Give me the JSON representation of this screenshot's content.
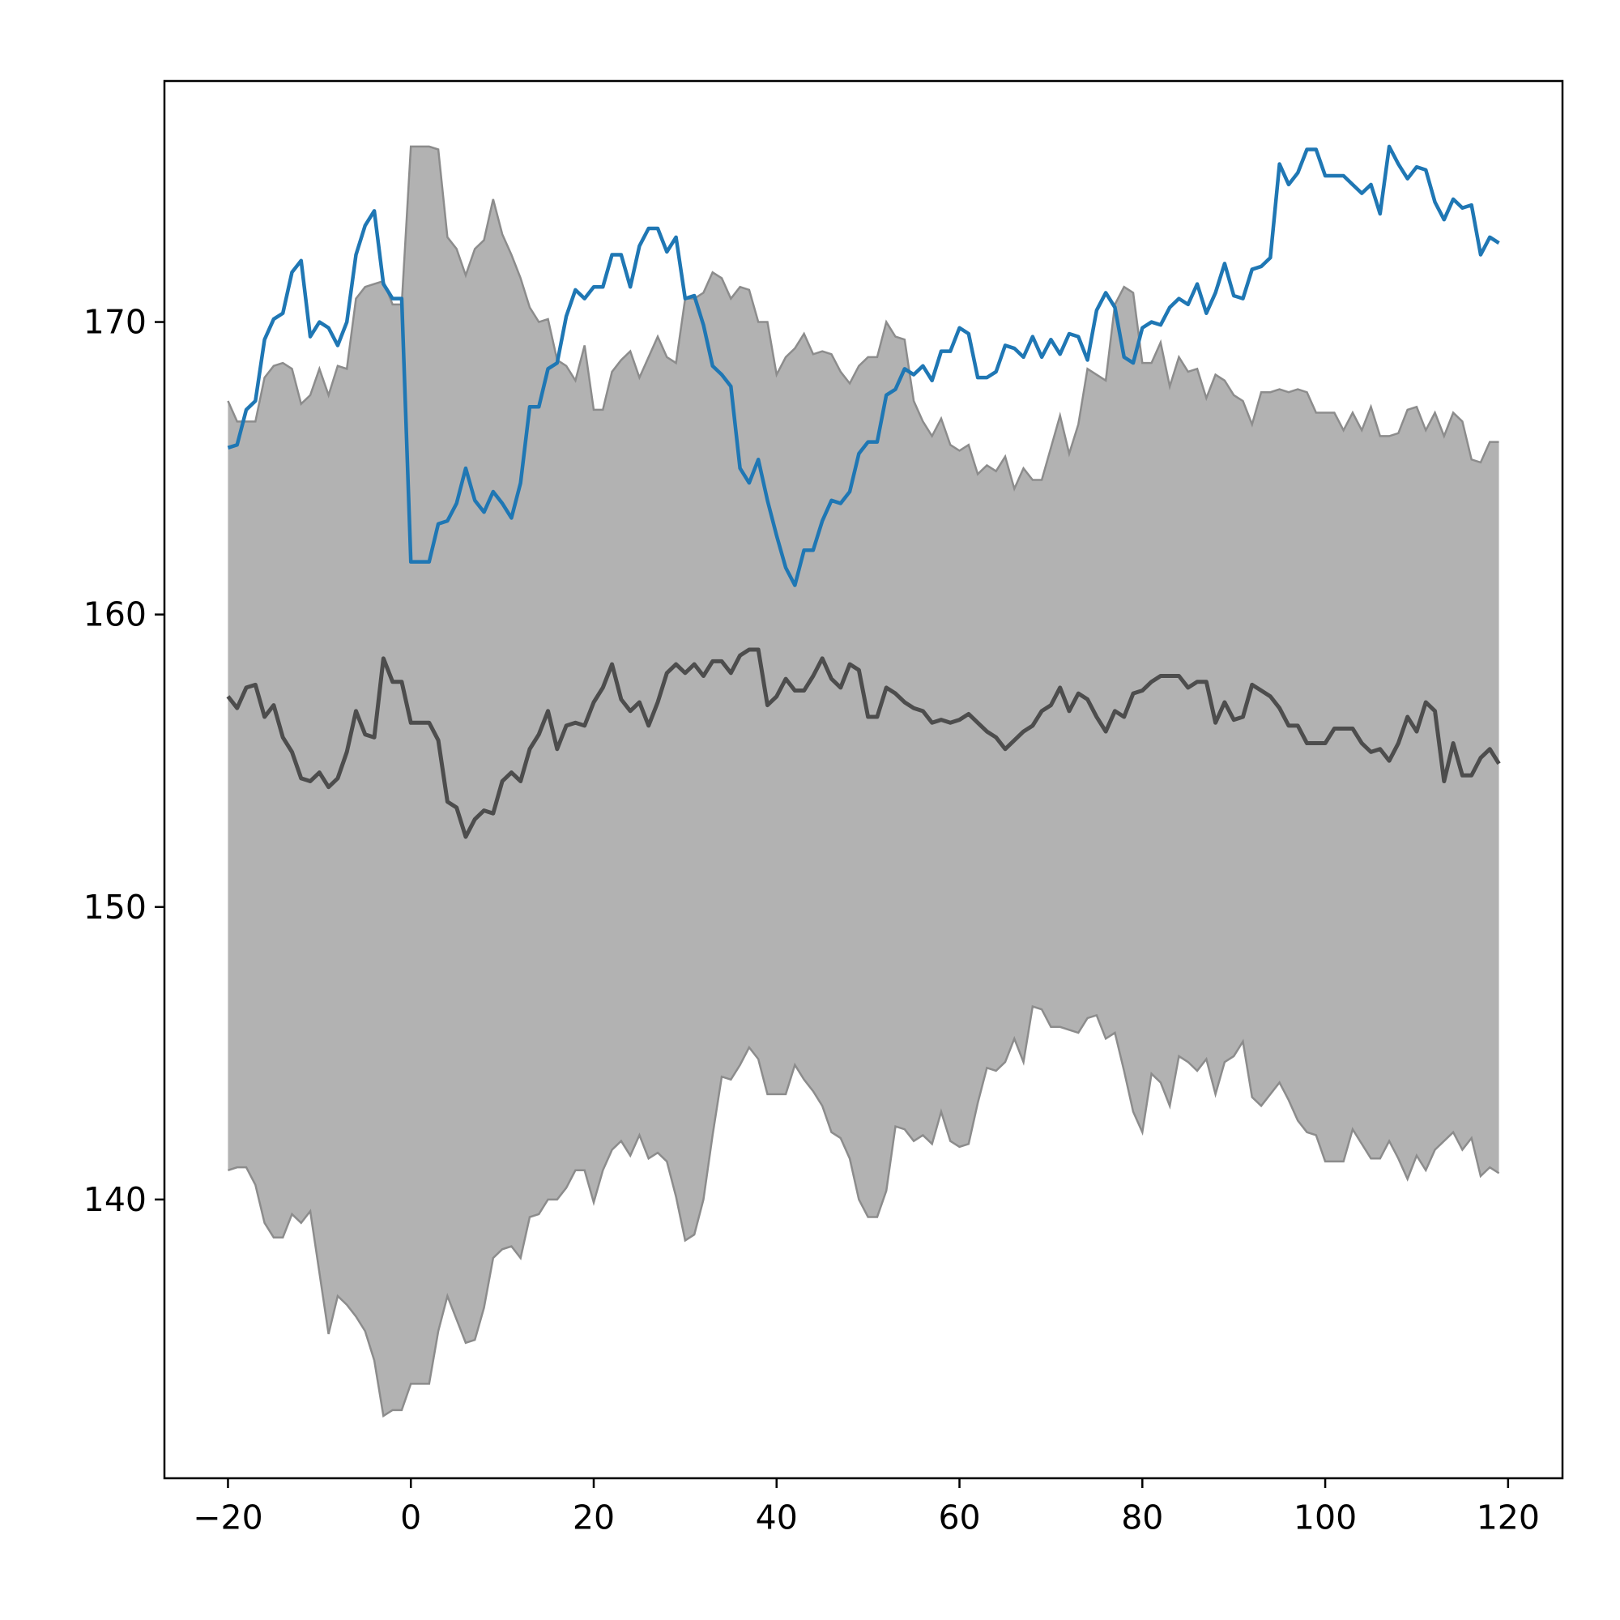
{
  "chart_data": {
    "type": "line",
    "x": [
      -20,
      -19,
      -18,
      -17,
      -16,
      -15,
      -14,
      -13,
      -12,
      -11,
      -10,
      -9,
      -8,
      -7,
      -6,
      -5,
      -4,
      -3,
      -2,
      -1,
      0,
      1,
      2,
      3,
      4,
      5,
      6,
      7,
      8,
      9,
      10,
      11,
      12,
      13,
      14,
      15,
      16,
      17,
      18,
      19,
      20,
      21,
      22,
      23,
      24,
      25,
      26,
      27,
      28,
      29,
      30,
      31,
      32,
      33,
      34,
      35,
      36,
      37,
      38,
      39,
      40,
      41,
      42,
      43,
      44,
      45,
      46,
      47,
      48,
      49,
      50,
      51,
      52,
      53,
      54,
      55,
      56,
      57,
      58,
      59,
      60,
      61,
      62,
      63,
      64,
      65,
      66,
      67,
      68,
      69,
      70,
      71,
      72,
      73,
      74,
      75,
      76,
      77,
      78,
      79,
      80,
      81,
      82,
      83,
      84,
      85,
      86,
      87,
      88,
      89,
      90,
      91,
      92,
      93,
      94,
      95,
      96,
      97,
      98,
      99,
      100,
      101,
      102,
      103,
      104,
      105,
      106,
      107,
      108,
      109,
      110,
      111,
      112,
      113,
      114,
      115,
      116,
      117,
      118,
      119
    ],
    "band": {
      "color": "#b2b2b2",
      "edgecolor": "#8c8c8c",
      "upper": [
        167.3,
        166.6,
        166.6,
        166.6,
        168.1,
        168.5,
        168.6,
        168.4,
        167.2,
        167.5,
        168.4,
        167.5,
        168.5,
        168.4,
        170.8,
        171.2,
        171.3,
        171.4,
        170.6,
        170.6,
        176.0,
        176.0,
        176.0,
        175.9,
        172.9,
        172.5,
        171.6,
        172.5,
        172.8,
        174.2,
        173.0,
        172.3,
        171.5,
        170.5,
        170.0,
        170.1,
        168.7,
        168.5,
        168.0,
        169.2,
        167.0,
        167.0,
        168.3,
        168.7,
        169.0,
        168.1,
        168.8,
        169.5,
        168.8,
        168.6,
        170.8,
        170.8,
        171.0,
        171.7,
        171.5,
        170.8,
        171.2,
        171.1,
        170.0,
        170.0,
        168.2,
        168.8,
        169.1,
        169.6,
        168.9,
        169.0,
        168.9,
        168.3,
        167.9,
        168.5,
        168.8,
        168.8,
        170.0,
        169.5,
        169.4,
        167.3,
        166.6,
        166.1,
        166.7,
        165.8,
        165.6,
        165.8,
        164.8,
        165.1,
        164.9,
        165.4,
        164.3,
        165.0,
        164.6,
        164.6,
        165.7,
        166.8,
        165.5,
        166.5,
        168.4,
        168.2,
        168.0,
        170.6,
        171.2,
        171.0,
        168.6,
        168.6,
        169.3,
        167.8,
        168.8,
        168.3,
        168.4,
        167.4,
        168.2,
        168.0,
        167.5,
        167.3,
        166.5,
        167.6,
        167.6,
        167.7,
        167.6,
        167.7,
        167.6,
        166.9,
        166.9,
        166.9,
        166.3,
        166.9,
        166.3,
        167.1,
        166.1,
        166.1,
        166.2,
        167.0,
        167.1,
        166.3,
        166.9,
        166.1,
        166.9,
        166.6,
        165.3,
        165.2,
        165.9,
        165.9
      ],
      "lower": [
        141.0,
        141.1,
        141.1,
        140.5,
        139.2,
        138.7,
        138.7,
        139.5,
        139.2,
        139.6,
        137.5,
        135.4,
        136.7,
        136.4,
        136.0,
        135.5,
        134.5,
        132.6,
        132.8,
        132.8,
        133.7,
        133.7,
        133.7,
        135.5,
        136.7,
        135.9,
        135.1,
        135.2,
        136.3,
        138.0,
        138.3,
        138.4,
        138.0,
        139.4,
        139.5,
        140.0,
        140.0,
        140.4,
        141.0,
        141.0,
        139.9,
        141.0,
        141.7,
        142.0,
        141.5,
        142.2,
        141.4,
        141.6,
        141.3,
        140.1,
        138.6,
        138.8,
        140.0,
        142.2,
        144.2,
        144.1,
        144.6,
        145.2,
        144.8,
        143.6,
        143.6,
        143.6,
        144.6,
        144.1,
        143.7,
        143.2,
        142.3,
        142.1,
        141.4,
        140.0,
        139.4,
        139.4,
        140.3,
        142.5,
        142.4,
        142.0,
        142.2,
        141.9,
        143.0,
        142.0,
        141.8,
        141.9,
        143.3,
        144.5,
        144.4,
        144.7,
        145.5,
        144.7,
        146.6,
        146.5,
        145.9,
        145.9,
        145.8,
        145.7,
        146.2,
        146.3,
        145.5,
        145.7,
        144.4,
        143.0,
        142.3,
        144.3,
        144.0,
        143.2,
        144.9,
        144.7,
        144.4,
        144.8,
        143.6,
        144.7,
        144.9,
        145.4,
        143.5,
        143.2,
        143.6,
        144.0,
        143.4,
        142.7,
        142.3,
        142.2,
        141.3,
        141.3,
        141.3,
        142.4,
        141.9,
        141.4,
        141.4,
        142.0,
        141.4,
        140.7,
        141.5,
        141.0,
        141.7,
        142.0,
        142.3,
        141.7,
        142.1,
        140.8,
        141.1,
        140.9
      ]
    },
    "series": [
      {
        "color": "#1f77b4",
        "values": [
          165.7,
          165.8,
          167.0,
          167.3,
          169.4,
          170.1,
          170.3,
          171.7,
          172.1,
          169.5,
          170.0,
          169.8,
          169.2,
          170.0,
          172.3,
          173.3,
          173.8,
          171.3,
          170.8,
          170.8,
          161.8,
          161.8,
          161.8,
          163.1,
          163.2,
          163.8,
          165.0,
          163.9,
          163.5,
          164.2,
          163.8,
          163.3,
          164.5,
          167.1,
          167.1,
          168.4,
          168.6,
          170.2,
          171.1,
          170.8,
          171.2,
          171.2,
          172.3,
          172.3,
          171.2,
          172.6,
          173.2,
          173.2,
          172.4,
          172.9,
          170.8,
          170.9,
          169.9,
          168.5,
          168.2,
          167.8,
          165.0,
          164.5,
          165.3,
          163.9,
          162.7,
          161.6,
          161.0,
          162.2,
          162.2,
          163.2,
          163.9,
          163.8,
          164.2,
          165.5,
          165.9,
          165.9,
          167.5,
          167.7,
          168.4,
          168.2,
          168.5,
          168.0,
          169.0,
          169.0,
          169.8,
          169.6,
          168.1,
          168.1,
          168.3,
          169.2,
          169.1,
          168.8,
          169.5,
          168.8,
          169.4,
          168.9,
          169.6,
          169.5,
          168.7,
          170.4,
          171.0,
          170.5,
          168.8,
          168.6,
          169.8,
          170.0,
          169.9,
          170.5,
          170.8,
          170.6,
          171.3,
          170.3,
          171.0,
          172.0,
          170.9,
          170.8,
          171.8,
          171.9,
          172.2,
          175.4,
          174.7,
          175.1,
          175.9,
          175.9,
          175.0,
          175.0,
          175.0,
          174.7,
          174.4,
          174.7,
          173.7,
          176.0,
          175.4,
          174.9,
          175.3,
          175.2,
          174.1,
          173.5,
          174.2,
          173.9,
          174.0,
          172.3,
          172.9,
          172.7
        ]
      },
      {
        "color": "#4d4d4d",
        "values": [
          157.2,
          156.8,
          157.5,
          157.6,
          156.5,
          156.9,
          155.8,
          155.3,
          154.4,
          154.3,
          154.6,
          154.1,
          154.4,
          155.3,
          156.7,
          155.9,
          155.8,
          158.5,
          157.7,
          157.7,
          156.3,
          156.3,
          156.3,
          155.7,
          153.6,
          153.4,
          152.4,
          153.0,
          153.3,
          153.2,
          154.3,
          154.6,
          154.3,
          155.4,
          155.9,
          156.7,
          155.4,
          156.2,
          156.3,
          156.2,
          157.0,
          157.5,
          158.3,
          157.1,
          156.7,
          157.0,
          156.2,
          157.0,
          158.0,
          158.3,
          158.0,
          158.3,
          157.9,
          158.4,
          158.4,
          158.0,
          158.6,
          158.8,
          158.8,
          156.9,
          157.2,
          157.8,
          157.4,
          157.4,
          157.9,
          158.5,
          157.8,
          157.5,
          158.3,
          158.1,
          156.5,
          156.5,
          157.5,
          157.3,
          157.0,
          156.8,
          156.7,
          156.3,
          156.4,
          156.3,
          156.4,
          156.6,
          156.3,
          156.0,
          155.8,
          155.4,
          155.7,
          156.0,
          156.2,
          156.7,
          156.9,
          157.5,
          156.7,
          157.3,
          157.1,
          156.5,
          156.0,
          156.7,
          156.5,
          157.3,
          157.4,
          157.7,
          157.9,
          157.9,
          157.9,
          157.5,
          157.7,
          157.7,
          156.3,
          157.0,
          156.4,
          156.5,
          157.6,
          157.4,
          157.2,
          156.8,
          156.2,
          156.2,
          155.6,
          155.6,
          155.6,
          156.1,
          156.1,
          156.1,
          155.6,
          155.3,
          155.4,
          155.0,
          155.6,
          156.5,
          156.0,
          157.0,
          156.7,
          154.3,
          155.6,
          154.5,
          154.5,
          155.1,
          155.4,
          154.9
        ]
      }
    ],
    "xlim": [
      -26.95,
      125.95
    ],
    "xticks": [
      {
        "value": -20,
        "label": "−20"
      },
      0,
      20,
      40,
      60,
      80,
      100,
      120
    ],
    "ylim": [
      130.47,
      178.24
    ],
    "yticks": [
      140,
      150,
      160,
      170
    ]
  }
}
